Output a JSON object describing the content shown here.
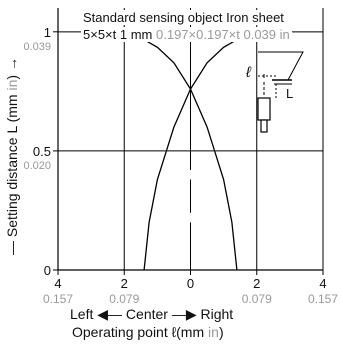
{
  "chart_data": {
    "type": "line",
    "annotation_line1": "Standard sensing object Iron sheet",
    "annotation_mm": "5×5×t 1 mm",
    "annotation_in": "0.197×0.197×t 0.039 in",
    "ylabel_prefix": "— Setting distance L (mm ",
    "ylabel_unit_in": "in",
    "ylabel_suffix": ") →",
    "xlabel_prefix": "Operating point ℓ(mm ",
    "xlabel_unit_in": "in",
    "xlabel_suffix": ")",
    "direction_left": "Left",
    "direction_center": "Center",
    "direction_right": "Right",
    "sensor_label_l": "ℓ",
    "sensor_label_L": "L",
    "xlim": [
      -4,
      4
    ],
    "ylim": [
      0,
      1.1
    ],
    "x_ticks": [
      {
        "value": -4,
        "mm": "4",
        "in": "0.157"
      },
      {
        "value": -2,
        "mm": "2",
        "in": "0.079"
      },
      {
        "value": 0,
        "mm": "0",
        "in": ""
      },
      {
        "value": 2,
        "mm": "2",
        "in": "0.079"
      },
      {
        "value": 4,
        "mm": "4",
        "in": "0.157"
      }
    ],
    "y_ticks": [
      {
        "value": 0,
        "mm": "0",
        "in": ""
      },
      {
        "value": 0.5,
        "mm": "0.5",
        "in": "0.020"
      },
      {
        "value": 1,
        "mm": "1",
        "in": "0.039"
      }
    ],
    "grid": true,
    "series": [
      {
        "values": [
          {
            "x": -1.4,
            "y": 0
          },
          {
            "x": -1.25,
            "y": 0.2
          },
          {
            "x": -1.0,
            "y": 0.38
          },
          {
            "x": -0.5,
            "y": 0.6
          },
          {
            "x": 0.0,
            "y": 0.76
          },
          {
            "x": 0.5,
            "y": 0.87
          },
          {
            "x": 1.0,
            "y": 0.935
          },
          {
            "x": 1.5,
            "y": 0.975
          },
          {
            "x": 2.0,
            "y": 1.0
          }
        ]
      },
      {
        "values": [
          {
            "x": -2.0,
            "y": 1.0
          },
          {
            "x": -1.5,
            "y": 0.975
          },
          {
            "x": -1.0,
            "y": 0.935
          },
          {
            "x": -0.5,
            "y": 0.87
          },
          {
            "x": 0.0,
            "y": 0.76
          },
          {
            "x": 0.5,
            "y": 0.6
          },
          {
            "x": 1.0,
            "y": 0.38
          },
          {
            "x": 1.25,
            "y": 0.2
          },
          {
            "x": 1.4,
            "y": 0
          }
        ]
      }
    ]
  }
}
